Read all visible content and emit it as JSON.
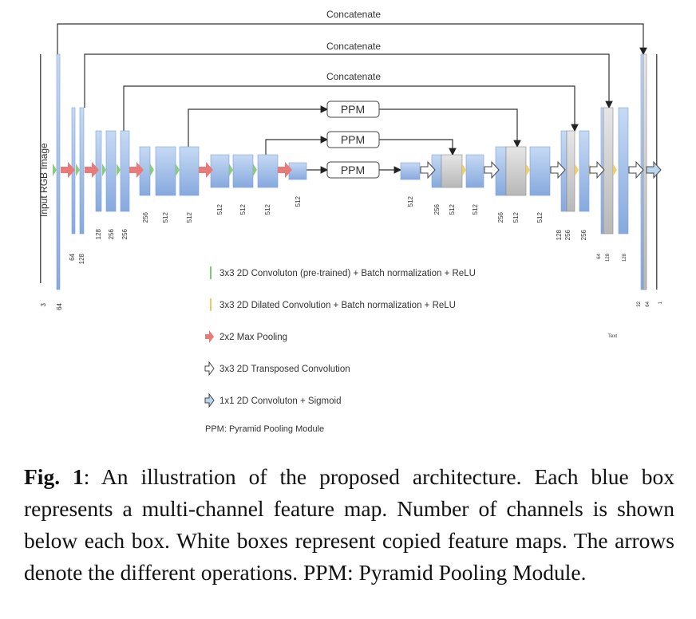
{
  "diagram": {
    "concat_labels": [
      "Concatenate",
      "Concatenate",
      "Concatenate"
    ],
    "input_label": "Input RGB Image",
    "ppm_labels": [
      "PPM",
      "PPM",
      "PPM"
    ],
    "channel_labels": [
      "3",
      "64",
      "64",
      "128",
      "128",
      "256",
      "256",
      "256",
      "512",
      "512",
      "512",
      "512",
      "512",
      "512",
      "512",
      "256",
      "512",
      "512",
      "256",
      "512",
      "512",
      "128",
      "256",
      "256",
      "64",
      "128",
      "128",
      "32",
      "64",
      "1"
    ],
    "legend": [
      {
        "icon": "green-conv-icon",
        "color": "#7ec86e",
        "label": "3x3 2D Convoluton (pre-trained) + Batch normalization + ReLU"
      },
      {
        "icon": "yellow-dilated-conv-icon",
        "color": "#f0c860",
        "label": "3x3 2D Dilated Convolution + Batch normalization + ReLU"
      },
      {
        "icon": "red-maxpool-arrow-icon",
        "color": "#e97a78",
        "label": "2x2 Max Pooling"
      },
      {
        "icon": "white-transposed-conv-arrow-icon",
        "color": "#ffffff",
        "label": "3x3 2D Transposed Convolution"
      },
      {
        "icon": "blue-sigmoid-arrow-icon",
        "color": "#bcd6f0",
        "label": "1x1 2D Convoluton + Sigmoid"
      }
    ],
    "legend_ppm": "PPM: Pyramid Pooling Module",
    "stray_text": "Text",
    "colors": {
      "feature_map": "#9dbde8",
      "copied_map": "#cfcfcf",
      "pool": "#e97a78",
      "conv": "#7ec86e",
      "dilated": "#f0c860"
    }
  },
  "caption": {
    "fig": "Fig. 1",
    "text": ": An illustration of the proposed architecture. Each blue box represents a multi-channel feature map. Number of channels is shown below each box. White boxes represent copied feature maps. The arrows denote the different operations. PPM: Pyramid Pooling Module."
  }
}
